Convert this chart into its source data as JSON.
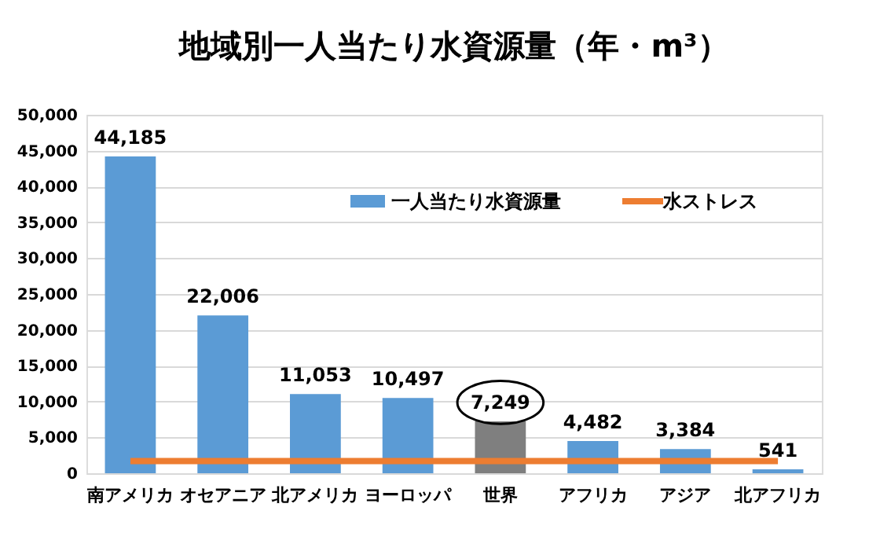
{
  "chart_data": {
    "type": "bar",
    "title": "地域別一人当たり水資源量（年・m³）",
    "categories": [
      "南アメリカ",
      "オセアニア",
      "北アメリカ",
      "ヨーロッパ",
      "世界",
      "アフリカ",
      "アジア",
      "北アフリカ"
    ],
    "series": [
      {
        "name": "一人当たり水資源量",
        "colors": [
          "#5b9bd5",
          "#5b9bd5",
          "#5b9bd5",
          "#5b9bd5",
          "#7f7f7f",
          "#5b9bd5",
          "#5b9bd5",
          "#5b9bd5"
        ],
        "values": [
          44185,
          22006,
          11053,
          10497,
          7249,
          4482,
          3384,
          541
        ],
        "value_labels": [
          "44,185",
          "22,006",
          "11,053",
          "10,497",
          "7,249",
          "4,482",
          "3,384",
          "541"
        ]
      },
      {
        "name": "水ストレス",
        "type": "line",
        "color": "#ed7d31",
        "values": [
          1700,
          1700,
          1700,
          1700,
          1700,
          1700,
          1700,
          1700
        ]
      }
    ],
    "ylim": [
      0,
      50000
    ],
    "yticks": [
      0,
      {
        "value": 5000,
        "label": "5,000"
      },
      {
        "value": 10000,
        "label": "10,000"
      },
      {
        "value": 15000,
        "label": "15,000"
      },
      {
        "value": 20000,
        "label": "20,000"
      },
      {
        "value": 25000,
        "label": "25,000"
      },
      {
        "value": 30000,
        "label": "30,000"
      },
      {
        "value": 35000,
        "label": "35,000"
      },
      {
        "value": 40000,
        "label": "40,000"
      },
      {
        "value": 45000,
        "label": "45,000"
      },
      {
        "value": 50000,
        "label": "50,000"
      }
    ],
    "grid": "y",
    "legend": "top right"
  }
}
